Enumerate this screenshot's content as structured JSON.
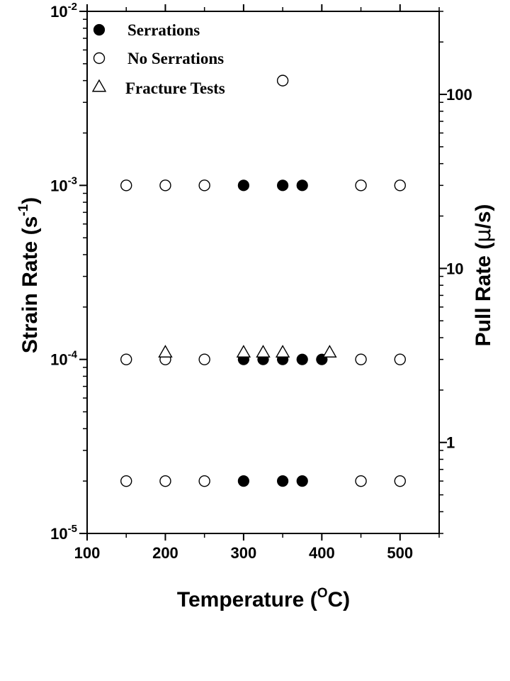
{
  "chart_data": {
    "type": "scatter",
    "x_axis": {
      "label_main": "Temperature (",
      "label_sup": "O",
      "label_end": "C)",
      "range": [
        100,
        550
      ],
      "ticks": [
        100,
        200,
        300,
        400,
        500
      ],
      "tick_labels": [
        "100",
        "200",
        "300",
        "400",
        "500"
      ]
    },
    "y_axis_left": {
      "label_main": "Strain Rate (s",
      "label_sup": "-1",
      "label_end": ")",
      "scale": "log",
      "range": [
        1e-05,
        0.01
      ],
      "ticks": [
        1e-05,
        0.0001,
        0.001,
        0.01
      ],
      "tick_labels": [
        {
          "base": "10",
          "exp": "-5"
        },
        {
          "base": "10",
          "exp": "-4"
        },
        {
          "base": "10",
          "exp": "-3"
        },
        {
          "base": "10",
          "exp": "-2"
        }
      ]
    },
    "y_axis_right": {
      "label_main": "Pull Rate (",
      "label_mu": "μ",
      "label_end": "/s)",
      "scale": "log",
      "range": [
        0.3,
        300
      ],
      "ticks": [
        1,
        10,
        100
      ],
      "tick_labels": [
        "1",
        "10",
        "100"
      ]
    },
    "legend": {
      "position": "top-left",
      "entries": [
        {
          "label": "Serrations",
          "marker": "filled-circle"
        },
        {
          "label": "No Serrations",
          "marker": "open-circle"
        },
        {
          "label": "Fracture Tests",
          "marker": "open-triangle"
        }
      ]
    },
    "series": [
      {
        "name": "Serrations",
        "marker": "filled-circle",
        "points": [
          {
            "x": 300,
            "y": 0.001
          },
          {
            "x": 350,
            "y": 0.001
          },
          {
            "x": 375,
            "y": 0.001
          },
          {
            "x": 300,
            "y": 0.0001
          },
          {
            "x": 325,
            "y": 0.0001
          },
          {
            "x": 350,
            "y": 0.0001
          },
          {
            "x": 375,
            "y": 0.0001
          },
          {
            "x": 400,
            "y": 0.0001
          },
          {
            "x": 300,
            "y": 2e-05
          },
          {
            "x": 350,
            "y": 2e-05
          },
          {
            "x": 375,
            "y": 2e-05
          }
        ]
      },
      {
        "name": "No Serrations",
        "marker": "open-circle",
        "points": [
          {
            "x": 350,
            "y": 0.004
          },
          {
            "x": 150,
            "y": 0.001
          },
          {
            "x": 200,
            "y": 0.001
          },
          {
            "x": 250,
            "y": 0.001
          },
          {
            "x": 450,
            "y": 0.001
          },
          {
            "x": 500,
            "y": 0.001
          },
          {
            "x": 150,
            "y": 0.0001
          },
          {
            "x": 200,
            "y": 0.0001
          },
          {
            "x": 250,
            "y": 0.0001
          },
          {
            "x": 450,
            "y": 0.0001
          },
          {
            "x": 500,
            "y": 0.0001
          },
          {
            "x": 150,
            "y": 2e-05
          },
          {
            "x": 200,
            "y": 2e-05
          },
          {
            "x": 250,
            "y": 2e-05
          },
          {
            "x": 450,
            "y": 2e-05
          },
          {
            "x": 500,
            "y": 2e-05
          }
        ]
      },
      {
        "name": "Fracture Tests",
        "marker": "open-triangle",
        "points": [
          {
            "x": 200,
            "y": 0.00011
          },
          {
            "x": 300,
            "y": 0.00011
          },
          {
            "x": 325,
            "y": 0.00011
          },
          {
            "x": 350,
            "y": 0.00011
          },
          {
            "x": 410,
            "y": 0.00011
          }
        ]
      }
    ],
    "grid": false
  }
}
